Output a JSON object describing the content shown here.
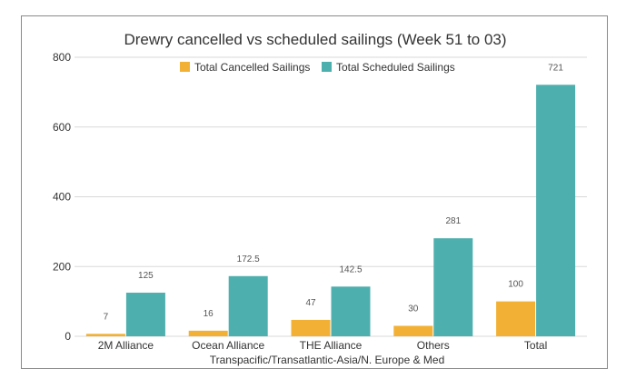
{
  "chart_data": {
    "type": "bar",
    "title": "Drewry cancelled vs scheduled sailings (Week 51 to 03)",
    "xlabel": "Transpacific/Transatlantic-Asia/N. Europe & Med",
    "ylabel": "",
    "ylim": [
      0,
      800
    ],
    "yticks": [
      0,
      200,
      400,
      600,
      800
    ],
    "grid": true,
    "legend_position": "top",
    "categories": [
      "2M Alliance",
      "Ocean Alliance",
      "THE Alliance",
      "Others",
      "Total"
    ],
    "series": [
      {
        "name": "Total Cancelled Sailings",
        "color": "#F2B134",
        "values": [
          7,
          16,
          47,
          30,
          100
        ],
        "labels": [
          "7",
          "16",
          "47",
          "30",
          "100"
        ]
      },
      {
        "name": "Total Scheduled Sailings",
        "color": "#4DAFAE",
        "values": [
          125,
          172.5,
          142.5,
          281,
          721
        ],
        "labels": [
          "125",
          "172.5",
          "142.5",
          "281",
          "721"
        ]
      }
    ]
  }
}
